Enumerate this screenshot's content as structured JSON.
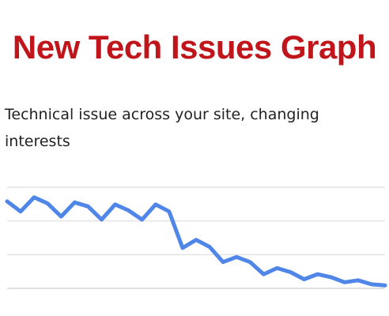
{
  "title": "New Tech Issues Graph",
  "subtitle": "Technical issue across your site, changing interests",
  "colors": {
    "title": "#c0161b",
    "line": "#4f86e8",
    "grid": "#e4e4e4",
    "baseline": "#d6d6d6"
  },
  "chart_data": {
    "type": "line",
    "title": "New Tech Issues Graph",
    "subtitle": "Technical issue across your site, changing interests",
    "xlabel": "",
    "ylabel": "",
    "x_ticks_visible": false,
    "y_ticks_visible": false,
    "grid": true,
    "gridlines": 4,
    "legend": "none",
    "ylim": [
      0,
      100
    ],
    "x": [
      0,
      1,
      2,
      3,
      4,
      5,
      6,
      7,
      8,
      9,
      10,
      11,
      12,
      13,
      14,
      15,
      16,
      17,
      18,
      19,
      20,
      21,
      22,
      23,
      24,
      25,
      26,
      27,
      28
    ],
    "series": [
      {
        "name": "",
        "values": [
          86,
          76,
          90,
          84,
          71,
          85,
          81,
          68,
          83,
          77,
          68,
          83,
          76,
          40,
          48,
          41,
          26,
          31,
          26,
          14,
          20,
          16,
          9,
          14,
          11,
          6,
          8,
          4,
          3
        ]
      }
    ]
  }
}
